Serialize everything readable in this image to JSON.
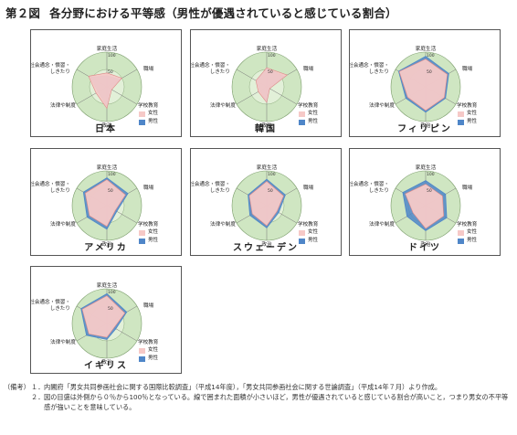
{
  "title": {
    "figure_no": "第２図",
    "text": "各分野における平等感（男性が優遇されていると感じている割合）"
  },
  "axes": {
    "labels": [
      "家庭生活",
      "職場",
      "学校教育",
      "政治",
      "法律や制度",
      "社会通念・慣習・しきたり"
    ],
    "tick_label": "100",
    "mid_tick_label": "50"
  },
  "legend": {
    "female": "女性",
    "male": "男性"
  },
  "colors": {
    "female": "#f2aaa8",
    "male": "#4f86c8",
    "female_fill": "#f6c9c7",
    "male_fill": "#4f86c8",
    "ring_outer": "#cfe6c2",
    "ring_inner": "#e2f0d8"
  },
  "chart_data": [
    {
      "type": "radar",
      "country": "日本",
      "categories": [
        "家庭生活",
        "職場",
        "学校教育",
        "政治",
        "法律や制度",
        "社会通念・慣習・しきたり"
      ],
      "ylim": [
        0,
        100
      ],
      "series": [
        {
          "name": "女性",
          "values": [
            40,
            50,
            16,
            62,
            36,
            61
          ]
        },
        {
          "name": "男性",
          "values": [
            32,
            43,
            12,
            55,
            29,
            55
          ]
        }
      ]
    },
    {
      "type": "radar",
      "country": "韓国",
      "categories": [
        "家庭生活",
        "職場",
        "学校教育",
        "政治",
        "法律や制度",
        "社会通念・慣習・しきたり"
      ],
      "ylim": [
        0,
        100
      ],
      "series": [
        {
          "name": "女性",
          "values": [
            55,
            68,
            10,
            45,
            28,
            36
          ]
        },
        {
          "name": "男性",
          "values": [
            52,
            59,
            8,
            43,
            23,
            34
          ]
        }
      ]
    },
    {
      "type": "radar",
      "country": "フィリピン",
      "categories": [
        "家庭生活",
        "職場",
        "学校教育",
        "政治",
        "法律や制度",
        "社会通念・慣習・しきたり"
      ],
      "ylim": [
        0,
        100
      ],
      "series": [
        {
          "name": "女性",
          "values": [
            80,
            72,
            62,
            68,
            60,
            88
          ]
        },
        {
          "name": "男性",
          "values": [
            88,
            77,
            66,
            73,
            66,
            90
          ]
        }
      ]
    },
    {
      "type": "radar",
      "country": "アメリカ",
      "categories": [
        "家庭生活",
        "職場",
        "学校教育",
        "政治",
        "法律や制度",
        "社会通念・慣習・しきたり"
      ],
      "ylim": [
        0,
        100
      ],
      "series": [
        {
          "name": "女性",
          "values": [
            75,
            62,
            28,
            60,
            58,
            72
          ]
        },
        {
          "name": "男性",
          "values": [
            80,
            70,
            33,
            68,
            66,
            78
          ]
        }
      ]
    },
    {
      "type": "radar",
      "country": "スウェーデン",
      "categories": [
        "家庭生活",
        "職場",
        "学校教育",
        "政治",
        "法律や制度",
        "社会通念・慣習・しきたり"
      ],
      "ylim": [
        0,
        100
      ],
      "series": [
        {
          "name": "女性",
          "values": [
            70,
            56,
            34,
            58,
            48,
            58
          ]
        },
        {
          "name": "男性",
          "values": [
            76,
            62,
            40,
            64,
            56,
            62
          ]
        }
      ]
    },
    {
      "type": "radar",
      "country": "ドイツ",
      "categories": [
        "家庭生活",
        "職場",
        "学校教育",
        "政治",
        "法律や制度",
        "社会通念・慣習・しきたり"
      ],
      "ylim": [
        0,
        100
      ],
      "series": [
        {
          "name": "女性",
          "values": [
            62,
            56,
            60,
            66,
            42,
            68
          ]
        },
        {
          "name": "男性",
          "values": [
            72,
            66,
            70,
            72,
            62,
            76
          ]
        }
      ]
    },
    {
      "type": "radar",
      "country": "イギリス",
      "categories": [
        "家庭生活",
        "職場",
        "学校教育",
        "政治",
        "法律や制度",
        "社会通念・慣習・しきたり"
      ],
      "ylim": [
        0,
        100
      ],
      "series": [
        {
          "name": "女性",
          "values": [
            80,
            60,
            24,
            40,
            60,
            82
          ]
        },
        {
          "name": "男性",
          "values": [
            86,
            66,
            30,
            46,
            68,
            86
          ]
        }
      ]
    }
  ],
  "notes": {
    "label": "（備考）",
    "items": [
      {
        "no": "１．",
        "text": "内閣府「男女共同参画社会に関する国際比較調査」（平成14年度），「男女共同参画社会に関する世論調査」（平成14年７月）より作成。"
      },
      {
        "no": "２．",
        "text": "図の目盛は外側から０％から100％となっている。線で囲まれた面積が小さいほど，男性が優遇されていると感じている割合が高いこと，つまり男女の不平等感が強いことを意味している。"
      }
    ]
  }
}
